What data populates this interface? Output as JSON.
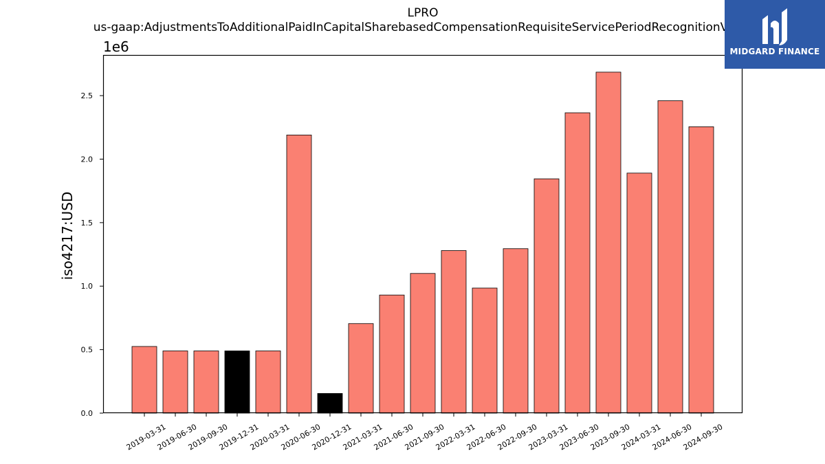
{
  "header": {
    "title": "LPRO",
    "subtitle": "us-gaap:AdjustmentsToAdditionalPaidInCapitalSharebasedCompensationRequisiteServicePeriodRecognitionValue"
  },
  "logo": {
    "text": "MIDGARD FINANCE",
    "bg_color": "#2e5aa8",
    "icon": "midgard-logo-icon"
  },
  "chart_data": {
    "type": "bar",
    "ylabel": "iso4217:USD",
    "scale_label": "1e6",
    "ylim": [
      0,
      2.82
    ],
    "yticks": [
      "0.0",
      "0.5",
      "1.0",
      "1.5",
      "2.0",
      "2.5"
    ],
    "ytick_values": [
      0,
      0.5,
      1.0,
      1.5,
      2.0,
      2.5
    ],
    "categories": [
      "2019-03-31",
      "2019-06-30",
      "2019-09-30",
      "2019-12-31",
      "2020-03-31",
      "2020-06-30",
      "2020-12-31",
      "2021-03-31",
      "2021-06-30",
      "2021-09-30",
      "2022-03-31",
      "2022-06-30",
      "2022-09-30",
      "2023-03-31",
      "2023-06-30",
      "2023-09-30",
      "2024-03-31",
      "2024-06-30",
      "2024-09-30"
    ],
    "values": [
      0.525,
      0.49,
      0.49,
      0.49,
      0.49,
      2.19,
      0.155,
      0.705,
      0.93,
      1.1,
      1.28,
      0.985,
      1.295,
      1.845,
      2.365,
      2.685,
      1.89,
      2.46,
      2.255
    ],
    "colors": [
      "#fa8072",
      "#fa8072",
      "#fa8072",
      "#000000",
      "#fa8072",
      "#fa8072",
      "#000000",
      "#fa8072",
      "#fa8072",
      "#fa8072",
      "#fa8072",
      "#fa8072",
      "#fa8072",
      "#fa8072",
      "#fa8072",
      "#fa8072",
      "#fa8072",
      "#fa8072",
      "#fa8072"
    ],
    "grid": false,
    "legend": "none"
  }
}
